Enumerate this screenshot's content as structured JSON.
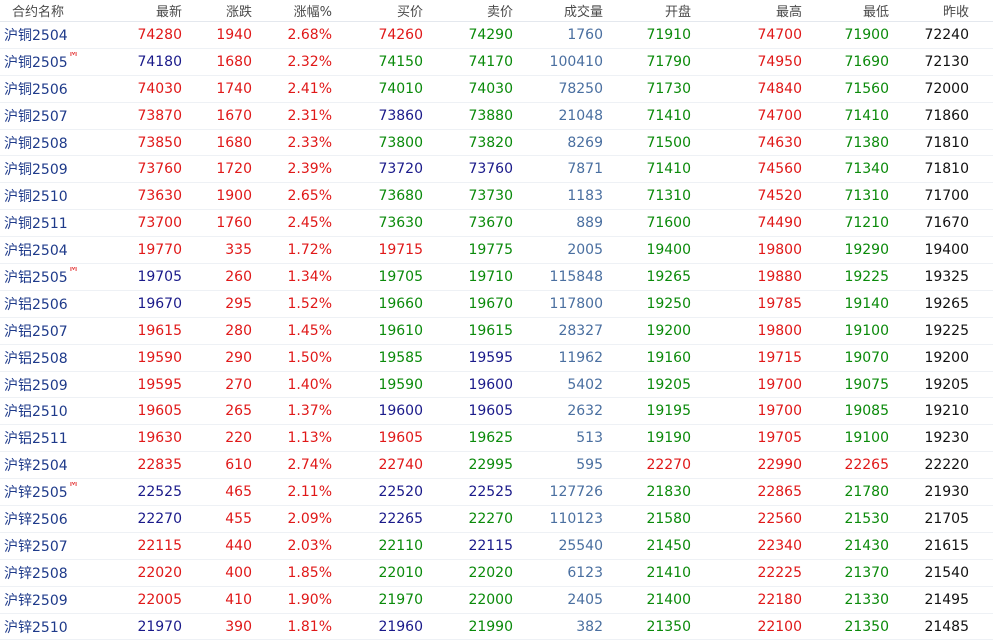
{
  "headers": {
    "name": "合约名称",
    "latest": "最新",
    "change": "涨跌",
    "pct": "涨幅%",
    "bid": "买价",
    "ask": "卖价",
    "volume": "成交量",
    "open": "开盘",
    "high": "最高",
    "low": "最低",
    "prev": "昨收"
  },
  "colors": {
    "up": "#e01818",
    "down": "#0a8a0a",
    "flat": "#1a1a8a",
    "volume": "#4a6fa0",
    "prev": "#111111",
    "name": "#1e3a8a",
    "main_badge": "#e02020"
  },
  "rows": [
    {
      "name": "沪铜2504",
      "main": "",
      "latest": "74280",
      "change": "1940",
      "pct": "2.68%",
      "bid": "74260",
      "ask": "74290",
      "volume": "1760",
      "open": "71910",
      "high": "74700",
      "low": "71900",
      "prev": "72240",
      "c_latest": "red",
      "c_bid": "red",
      "c_ask": "green",
      "c_open": "green",
      "c_high": "red",
      "c_low": "green"
    },
    {
      "name": "沪铜2505",
      "main": "M",
      "latest": "74180",
      "change": "1680",
      "pct": "2.32%",
      "bid": "74150",
      "ask": "74170",
      "volume": "100410",
      "open": "71790",
      "high": "74950",
      "low": "71690",
      "prev": "72130",
      "c_latest": "navy",
      "c_bid": "green",
      "c_ask": "green",
      "c_open": "green",
      "c_high": "red",
      "c_low": "green"
    },
    {
      "name": "沪铜2506",
      "main": "",
      "latest": "74030",
      "change": "1740",
      "pct": "2.41%",
      "bid": "74010",
      "ask": "74030",
      "volume": "78250",
      "open": "71730",
      "high": "74840",
      "low": "71560",
      "prev": "72000",
      "c_latest": "red",
      "c_bid": "green",
      "c_ask": "green",
      "c_open": "green",
      "c_high": "red",
      "c_low": "green"
    },
    {
      "name": "沪铜2507",
      "main": "",
      "latest": "73870",
      "change": "1670",
      "pct": "2.31%",
      "bid": "73860",
      "ask": "73880",
      "volume": "21048",
      "open": "71410",
      "high": "74700",
      "low": "71410",
      "prev": "71860",
      "c_latest": "red",
      "c_bid": "navy",
      "c_ask": "green",
      "c_open": "green",
      "c_high": "red",
      "c_low": "green"
    },
    {
      "name": "沪铜2508",
      "main": "",
      "latest": "73850",
      "change": "1680",
      "pct": "2.33%",
      "bid": "73800",
      "ask": "73820",
      "volume": "8269",
      "open": "71500",
      "high": "74630",
      "low": "71380",
      "prev": "71810",
      "c_latest": "red",
      "c_bid": "green",
      "c_ask": "green",
      "c_open": "green",
      "c_high": "red",
      "c_low": "green"
    },
    {
      "name": "沪铜2509",
      "main": "",
      "latest": "73760",
      "change": "1720",
      "pct": "2.39%",
      "bid": "73720",
      "ask": "73760",
      "volume": "7871",
      "open": "71410",
      "high": "74560",
      "low": "71340",
      "prev": "71810",
      "c_latest": "red",
      "c_bid": "navy",
      "c_ask": "navy",
      "c_open": "green",
      "c_high": "red",
      "c_low": "green"
    },
    {
      "name": "沪铜2510",
      "main": "",
      "latest": "73630",
      "change": "1900",
      "pct": "2.65%",
      "bid": "73680",
      "ask": "73730",
      "volume": "1183",
      "open": "71310",
      "high": "74520",
      "low": "71310",
      "prev": "71700",
      "c_latest": "red",
      "c_bid": "green",
      "c_ask": "green",
      "c_open": "green",
      "c_high": "red",
      "c_low": "green"
    },
    {
      "name": "沪铜2511",
      "main": "",
      "latest": "73700",
      "change": "1760",
      "pct": "2.45%",
      "bid": "73630",
      "ask": "73670",
      "volume": "889",
      "open": "71600",
      "high": "74490",
      "low": "71210",
      "prev": "71670",
      "c_latest": "red",
      "c_bid": "green",
      "c_ask": "green",
      "c_open": "green",
      "c_high": "red",
      "c_low": "green"
    },
    {
      "name": "沪铝2504",
      "main": "",
      "latest": "19770",
      "change": "335",
      "pct": "1.72%",
      "bid": "19715",
      "ask": "19775",
      "volume": "2005",
      "open": "19400",
      "high": "19800",
      "low": "19290",
      "prev": "19400",
      "c_latest": "red",
      "c_bid": "red",
      "c_ask": "green",
      "c_open": "green",
      "c_high": "red",
      "c_low": "green"
    },
    {
      "name": "沪铝2505",
      "main": "M",
      "latest": "19705",
      "change": "260",
      "pct": "1.34%",
      "bid": "19705",
      "ask": "19710",
      "volume": "115848",
      "open": "19265",
      "high": "19880",
      "low": "19225",
      "prev": "19325",
      "c_latest": "navy",
      "c_bid": "green",
      "c_ask": "green",
      "c_open": "green",
      "c_high": "red",
      "c_low": "green"
    },
    {
      "name": "沪铝2506",
      "main": "",
      "latest": "19670",
      "change": "295",
      "pct": "1.52%",
      "bid": "19660",
      "ask": "19670",
      "volume": "117800",
      "open": "19250",
      "high": "19785",
      "low": "19140",
      "prev": "19265",
      "c_latest": "navy",
      "c_bid": "green",
      "c_ask": "green",
      "c_open": "green",
      "c_high": "red",
      "c_low": "green"
    },
    {
      "name": "沪铝2507",
      "main": "",
      "latest": "19615",
      "change": "280",
      "pct": "1.45%",
      "bid": "19610",
      "ask": "19615",
      "volume": "28327",
      "open": "19200",
      "high": "19800",
      "low": "19100",
      "prev": "19225",
      "c_latest": "red",
      "c_bid": "green",
      "c_ask": "green",
      "c_open": "green",
      "c_high": "red",
      "c_low": "green"
    },
    {
      "name": "沪铝2508",
      "main": "",
      "latest": "19590",
      "change": "290",
      "pct": "1.50%",
      "bid": "19585",
      "ask": "19595",
      "volume": "11962",
      "open": "19160",
      "high": "19715",
      "low": "19070",
      "prev": "19200",
      "c_latest": "red",
      "c_bid": "green",
      "c_ask": "navy",
      "c_open": "green",
      "c_high": "red",
      "c_low": "green"
    },
    {
      "name": "沪铝2509",
      "main": "",
      "latest": "19595",
      "change": "270",
      "pct": "1.40%",
      "bid": "19590",
      "ask": "19600",
      "volume": "5402",
      "open": "19205",
      "high": "19700",
      "low": "19075",
      "prev": "19205",
      "c_latest": "red",
      "c_bid": "green",
      "c_ask": "navy",
      "c_open": "green",
      "c_high": "red",
      "c_low": "green"
    },
    {
      "name": "沪铝2510",
      "main": "",
      "latest": "19605",
      "change": "265",
      "pct": "1.37%",
      "bid": "19600",
      "ask": "19605",
      "volume": "2632",
      "open": "19195",
      "high": "19700",
      "low": "19085",
      "prev": "19210",
      "c_latest": "red",
      "c_bid": "navy",
      "c_ask": "navy",
      "c_open": "green",
      "c_high": "red",
      "c_low": "green"
    },
    {
      "name": "沪铝2511",
      "main": "",
      "latest": "19630",
      "change": "220",
      "pct": "1.13%",
      "bid": "19605",
      "ask": "19625",
      "volume": "513",
      "open": "19190",
      "high": "19705",
      "low": "19100",
      "prev": "19230",
      "c_latest": "red",
      "c_bid": "red",
      "c_ask": "green",
      "c_open": "green",
      "c_high": "red",
      "c_low": "green"
    },
    {
      "name": "沪锌2504",
      "main": "",
      "latest": "22835",
      "change": "610",
      "pct": "2.74%",
      "bid": "22740",
      "ask": "22995",
      "volume": "595",
      "open": "22270",
      "high": "22990",
      "low": "22265",
      "prev": "22220",
      "c_latest": "red",
      "c_bid": "red",
      "c_ask": "green",
      "c_open": "red",
      "c_high": "red",
      "c_low": "red",
      "c_prev": "black"
    },
    {
      "name": "沪锌2505",
      "main": "M",
      "latest": "22525",
      "change": "465",
      "pct": "2.11%",
      "bid": "22520",
      "ask": "22525",
      "volume": "127726",
      "open": "21830",
      "high": "22865",
      "low": "21780",
      "prev": "21930",
      "c_latest": "navy",
      "c_bid": "navy",
      "c_ask": "navy",
      "c_open": "green",
      "c_high": "red",
      "c_low": "green"
    },
    {
      "name": "沪锌2506",
      "main": "",
      "latest": "22270",
      "change": "455",
      "pct": "2.09%",
      "bid": "22265",
      "ask": "22270",
      "volume": "110123",
      "open": "21580",
      "high": "22560",
      "low": "21530",
      "prev": "21705",
      "c_latest": "navy",
      "c_bid": "navy",
      "c_ask": "green",
      "c_open": "green",
      "c_high": "red",
      "c_low": "green"
    },
    {
      "name": "沪锌2507",
      "main": "",
      "latest": "22115",
      "change": "440",
      "pct": "2.03%",
      "bid": "22110",
      "ask": "22115",
      "volume": "25540",
      "open": "21450",
      "high": "22340",
      "low": "21430",
      "prev": "21615",
      "c_latest": "red",
      "c_bid": "green",
      "c_ask": "navy",
      "c_open": "green",
      "c_high": "red",
      "c_low": "green"
    },
    {
      "name": "沪锌2508",
      "main": "",
      "latest": "22020",
      "change": "400",
      "pct": "1.85%",
      "bid": "22010",
      "ask": "22020",
      "volume": "6123",
      "open": "21410",
      "high": "22225",
      "low": "21370",
      "prev": "21540",
      "c_latest": "red",
      "c_bid": "green",
      "c_ask": "green",
      "c_open": "green",
      "c_high": "red",
      "c_low": "green"
    },
    {
      "name": "沪锌2509",
      "main": "",
      "latest": "22005",
      "change": "410",
      "pct": "1.90%",
      "bid": "21970",
      "ask": "22000",
      "volume": "2405",
      "open": "21400",
      "high": "22180",
      "low": "21330",
      "prev": "21495",
      "c_latest": "red",
      "c_bid": "green",
      "c_ask": "green",
      "c_open": "green",
      "c_high": "red",
      "c_low": "green"
    },
    {
      "name": "沪锌2510",
      "main": "",
      "latest": "21970",
      "change": "390",
      "pct": "1.81%",
      "bid": "21960",
      "ask": "21990",
      "volume": "382",
      "open": "21350",
      "high": "22100",
      "low": "21350",
      "prev": "21485",
      "c_latest": "navy",
      "c_bid": "navy",
      "c_ask": "green",
      "c_open": "green",
      "c_high": "red",
      "c_low": "green"
    }
  ]
}
